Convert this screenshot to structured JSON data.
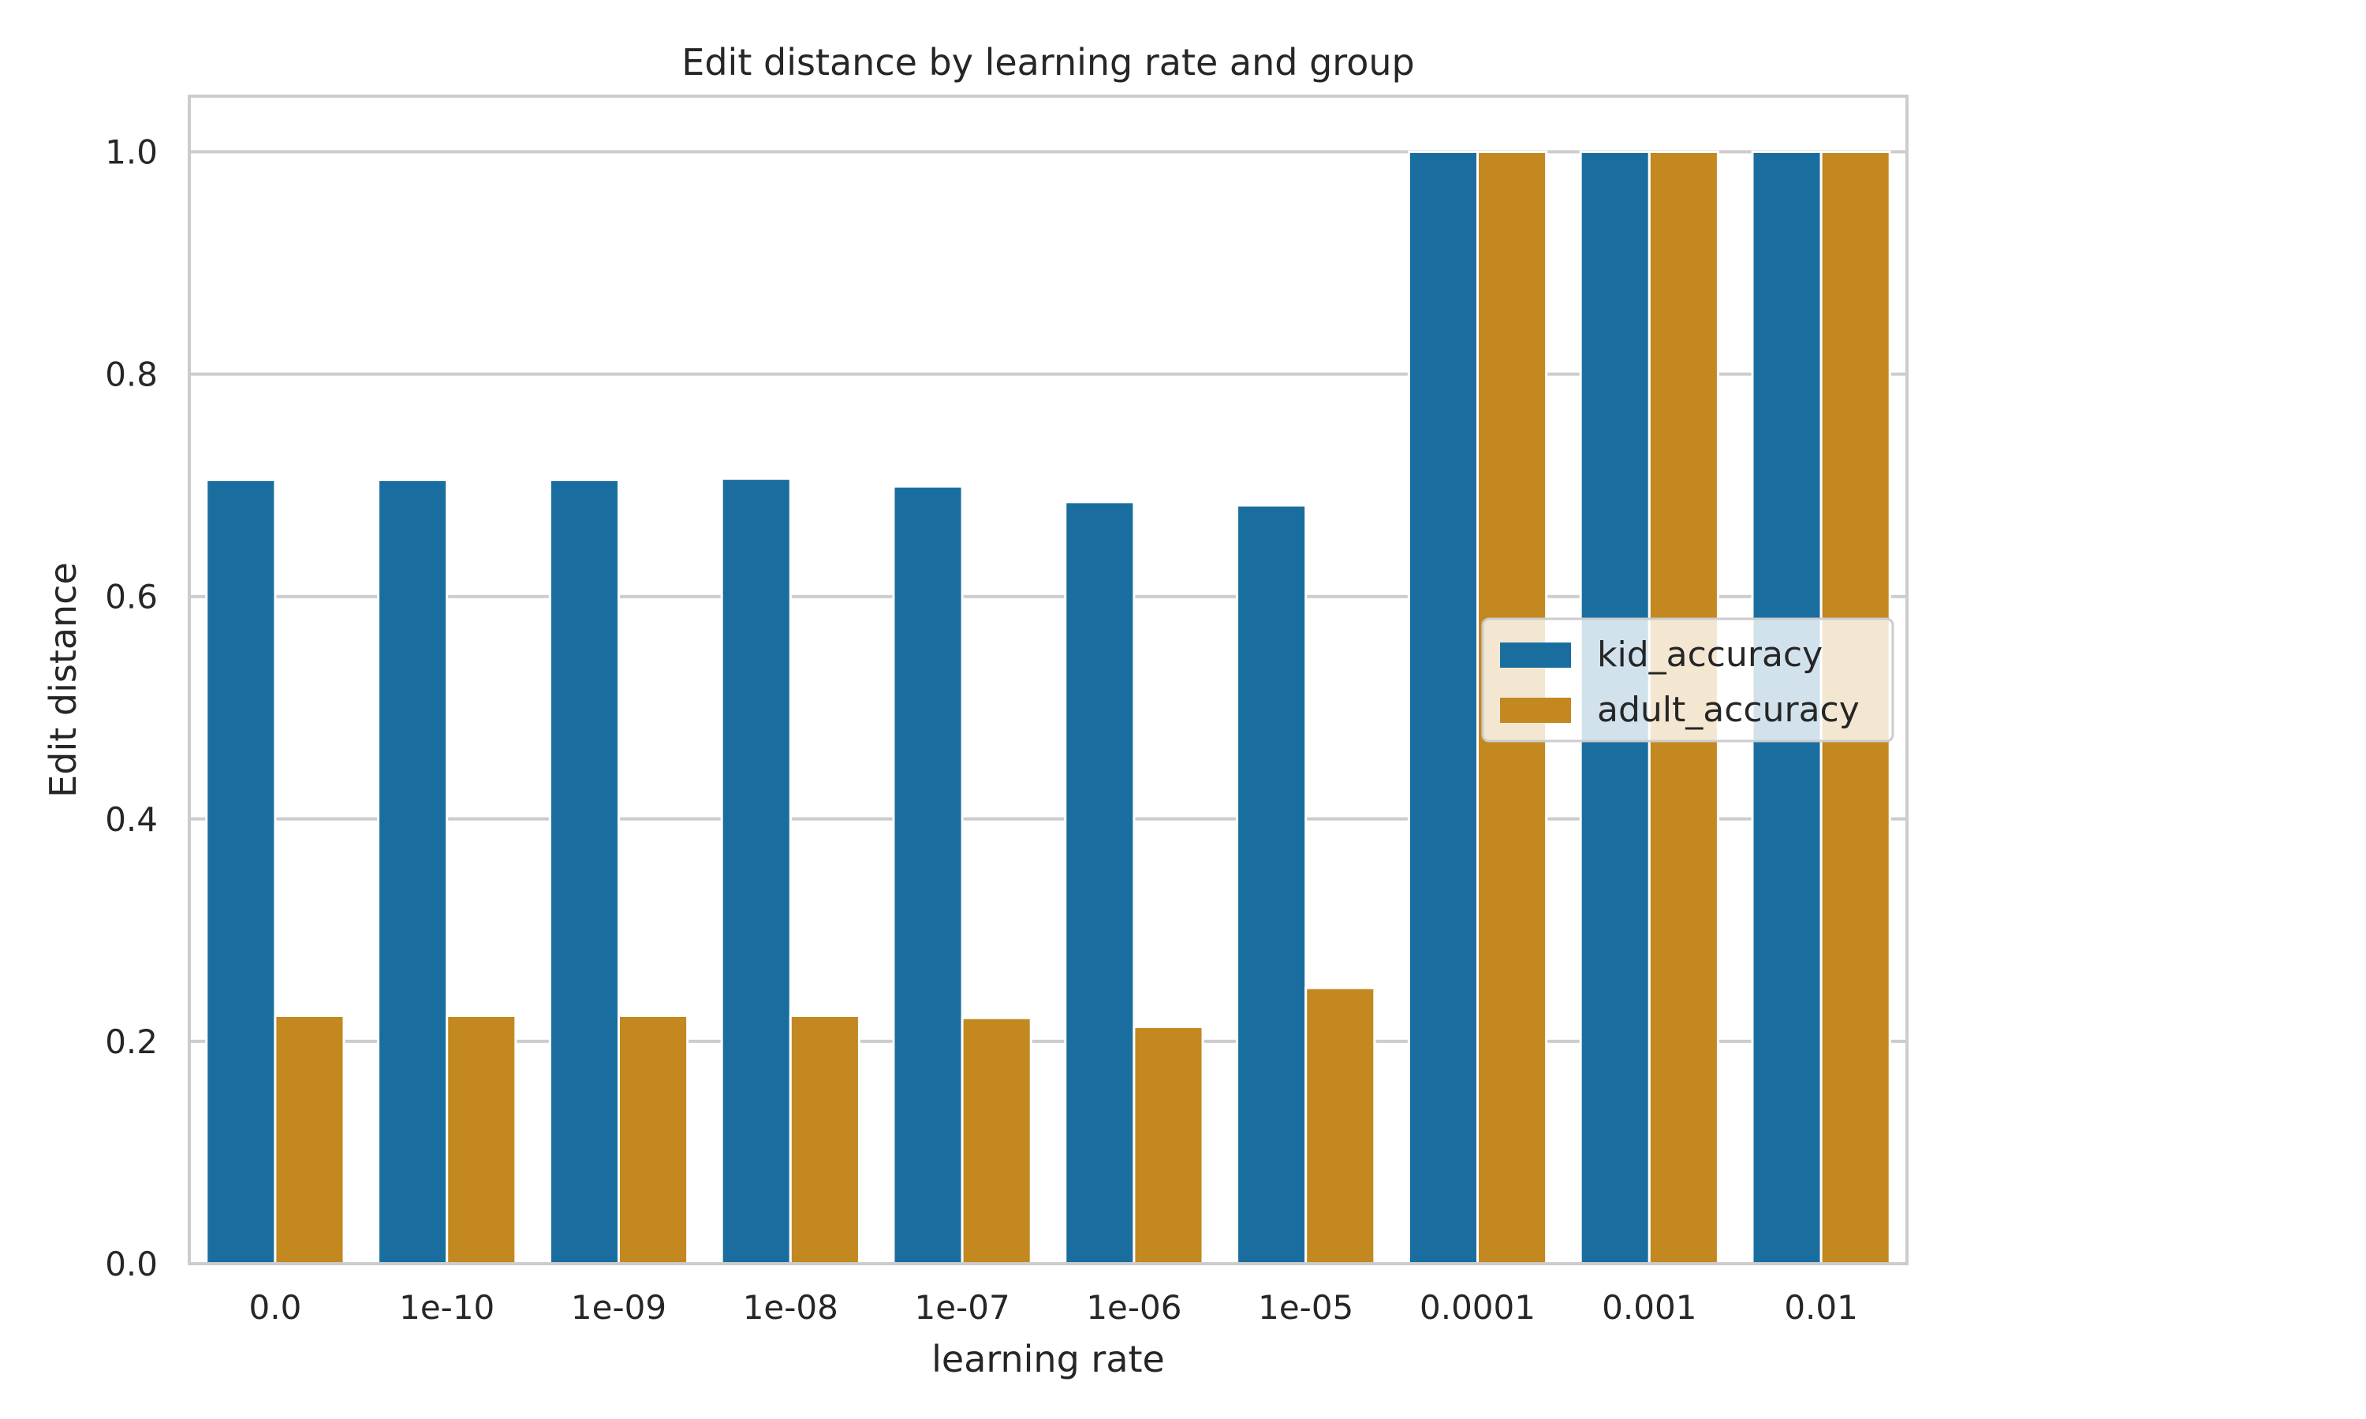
{
  "chart_data": {
    "type": "bar",
    "title": "Edit distance by learning rate and group",
    "xlabel": "learning rate",
    "ylabel": "Edit distance",
    "ylim": [
      0,
      1.05
    ],
    "yticks": [
      "0.0",
      "0.2",
      "0.4",
      "0.6",
      "0.8",
      "1.0"
    ],
    "grid": true,
    "legend_position": "center-right",
    "categories": [
      "0.0",
      "1e-10",
      "1e-09",
      "1e-08",
      "1e-07",
      "1e-06",
      "1e-05",
      "0.0001",
      "0.001",
      "0.01"
    ],
    "series": [
      {
        "name": "kid_accuracy",
        "color": "#1a6e9f",
        "values": [
          0.705,
          0.705,
          0.705,
          0.706,
          0.699,
          0.685,
          0.682,
          1.0,
          1.0,
          1.0
        ]
      },
      {
        "name": "adult_accuracy",
        "color": "#c38820",
        "values": [
          0.223,
          0.223,
          0.223,
          0.223,
          0.221,
          0.213,
          0.248,
          1.0,
          1.0,
          1.0
        ]
      }
    ]
  }
}
